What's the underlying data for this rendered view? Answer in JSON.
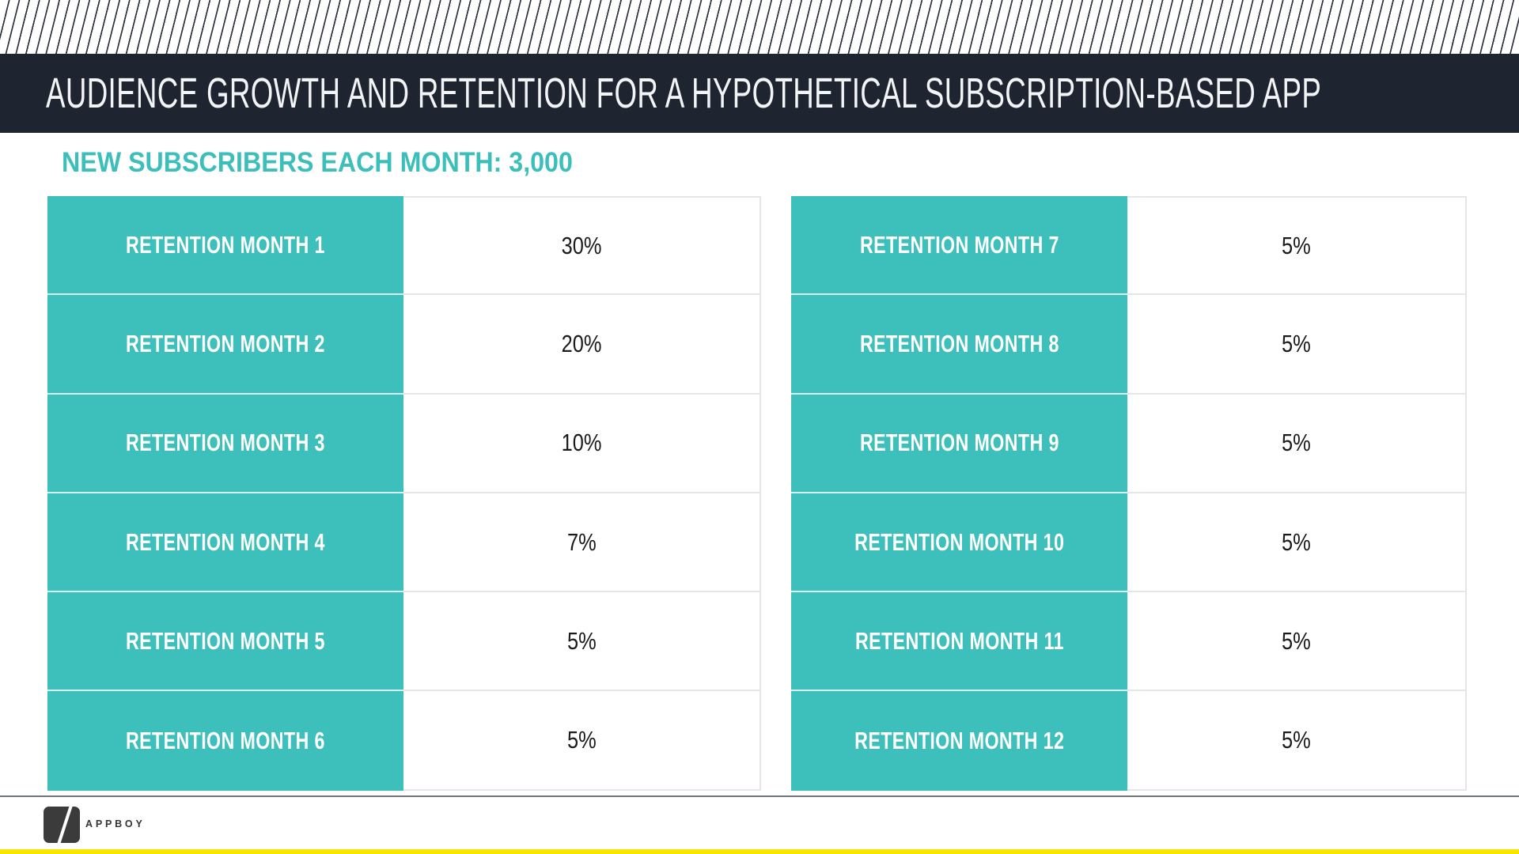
{
  "title": "AUDIENCE GROWTH AND RETENTION FOR A HYPOTHETICAL SUBSCRIPTION-BASED APP",
  "subtitle": "NEW SUBSCRIBERS EACH MONTH: 3,000",
  "tables": [
    {
      "rows": [
        {
          "label": "RETENTION MONTH 1",
          "value": "30%"
        },
        {
          "label": "RETENTION MONTH 2",
          "value": "20%"
        },
        {
          "label": "RETENTION MONTH 3",
          "value": "10%"
        },
        {
          "label": "RETENTION MONTH 4",
          "value": "7%"
        },
        {
          "label": "RETENTION MONTH 5",
          "value": "5%"
        },
        {
          "label": "RETENTION MONTH 6",
          "value": "5%"
        }
      ]
    },
    {
      "rows": [
        {
          "label": "RETENTION MONTH 7",
          "value": "5%"
        },
        {
          "label": "RETENTION MONTH 8",
          "value": "5%"
        },
        {
          "label": "RETENTION MONTH 9",
          "value": "5%"
        },
        {
          "label": "RETENTION MONTH 10",
          "value": "5%"
        },
        {
          "label": "RETENTION MONTH 11",
          "value": "5%"
        },
        {
          "label": "RETENTION MONTH 12",
          "value": "5%"
        }
      ]
    }
  ],
  "footer": {
    "brand": "APPBOY",
    "logo_icon": "slash-icon"
  },
  "colors": {
    "teal": "#3dbfbb",
    "navy": "#1e2430",
    "yellow": "#f7e700",
    "hatch_line": "#2d333e",
    "cell_border": "#e6e6e6",
    "divider_gray": "#71767c",
    "logo_gray": "#3b3b3b"
  }
}
